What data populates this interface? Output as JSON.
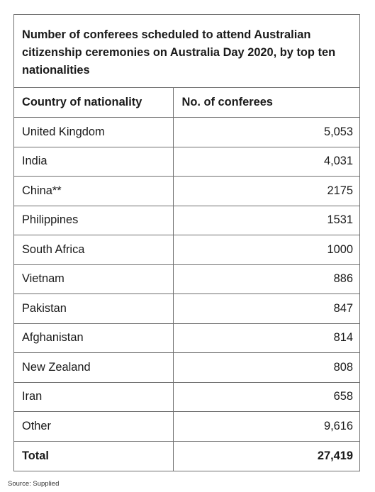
{
  "table": {
    "title": "Number of conferees scheduled to attend Australian citizenship ceremonies on Australia Day 2020, by top ten nationalities",
    "headers": [
      "Country of nationality",
      "No. of conferees"
    ],
    "rows": [
      {
        "country": "United Kingdom",
        "count": "5,053"
      },
      {
        "country": "India",
        "count": "4,031"
      },
      {
        "country": "China**",
        "count": "2175"
      },
      {
        "country": "Philippines",
        "count": "1531"
      },
      {
        "country": "South Africa",
        "count": "1000"
      },
      {
        "country": "Vietnam",
        "count": "886"
      },
      {
        "country": "Pakistan",
        "count": "847"
      },
      {
        "country": "Afghanistan",
        "count": "814"
      },
      {
        "country": "New Zealand",
        "count": "808"
      },
      {
        "country": "Iran",
        "count": "658"
      },
      {
        "country": "Other",
        "count": "9,616"
      }
    ],
    "total": {
      "label": "Total",
      "count": "27,419"
    }
  },
  "source": "Source: Supplied"
}
